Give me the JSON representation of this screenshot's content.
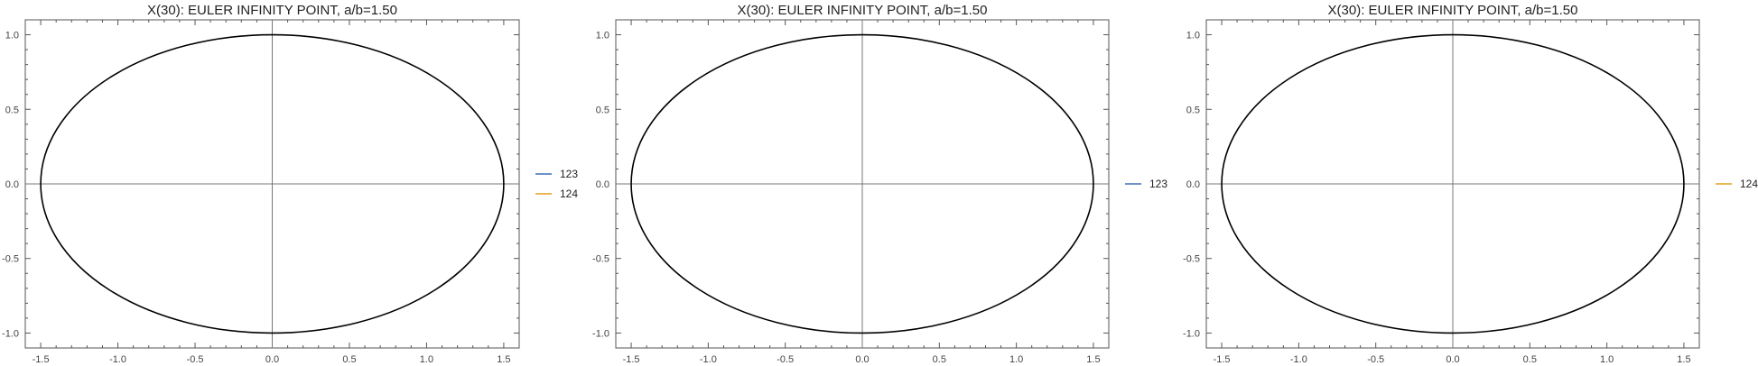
{
  "chart_data": [
    {
      "type": "line",
      "title": "X(30): EULER INFINITY POINT, a/b=1.50",
      "xlim": [
        -1.6,
        1.6
      ],
      "ylim": [
        -1.1,
        1.1
      ],
      "x_ticks": [
        "-1.5",
        "-1.0",
        "-0.5",
        "0.0",
        "0.5",
        "1.0",
        "1.5"
      ],
      "y_ticks": [
        "-1.0",
        "-0.5",
        "0.0",
        "0.5",
        "1.0"
      ],
      "ellipse": {
        "a": 1.5,
        "b": 1.0,
        "color": "#000000"
      },
      "legend_position": "right",
      "legend": [
        {
          "label": "123",
          "color": "#3d6fb6"
        },
        {
          "label": "124",
          "color": "#e0a020"
        }
      ]
    },
    {
      "type": "line",
      "title": "X(30): EULER INFINITY POINT, a/b=1.50",
      "xlim": [
        -1.6,
        1.6
      ],
      "ylim": [
        -1.1,
        1.1
      ],
      "x_ticks": [
        "-1.5",
        "-1.0",
        "-0.5",
        "0.0",
        "0.5",
        "1.0",
        "1.5"
      ],
      "y_ticks": [
        "-1.0",
        "-0.5",
        "0.0",
        "0.5",
        "1.0"
      ],
      "ellipse": {
        "a": 1.5,
        "b": 1.0,
        "color": "#000000"
      },
      "legend_position": "right",
      "legend": [
        {
          "label": "123",
          "color": "#3d6fb6"
        }
      ]
    },
    {
      "type": "line",
      "title": "X(30): EULER INFINITY POINT, a/b=1.50",
      "xlim": [
        -1.6,
        1.6
      ],
      "ylim": [
        -1.1,
        1.1
      ],
      "x_ticks": [
        "-1.5",
        "-1.0",
        "-0.5",
        "0.0",
        "0.5",
        "1.0",
        "1.5"
      ],
      "y_ticks": [
        "-1.0",
        "-0.5",
        "0.0",
        "0.5",
        "1.0"
      ],
      "ellipse": {
        "a": 1.5,
        "b": 1.0,
        "color": "#000000"
      },
      "legend_position": "right",
      "legend": [
        {
          "label": "124",
          "color": "#e0a020"
        }
      ]
    }
  ]
}
